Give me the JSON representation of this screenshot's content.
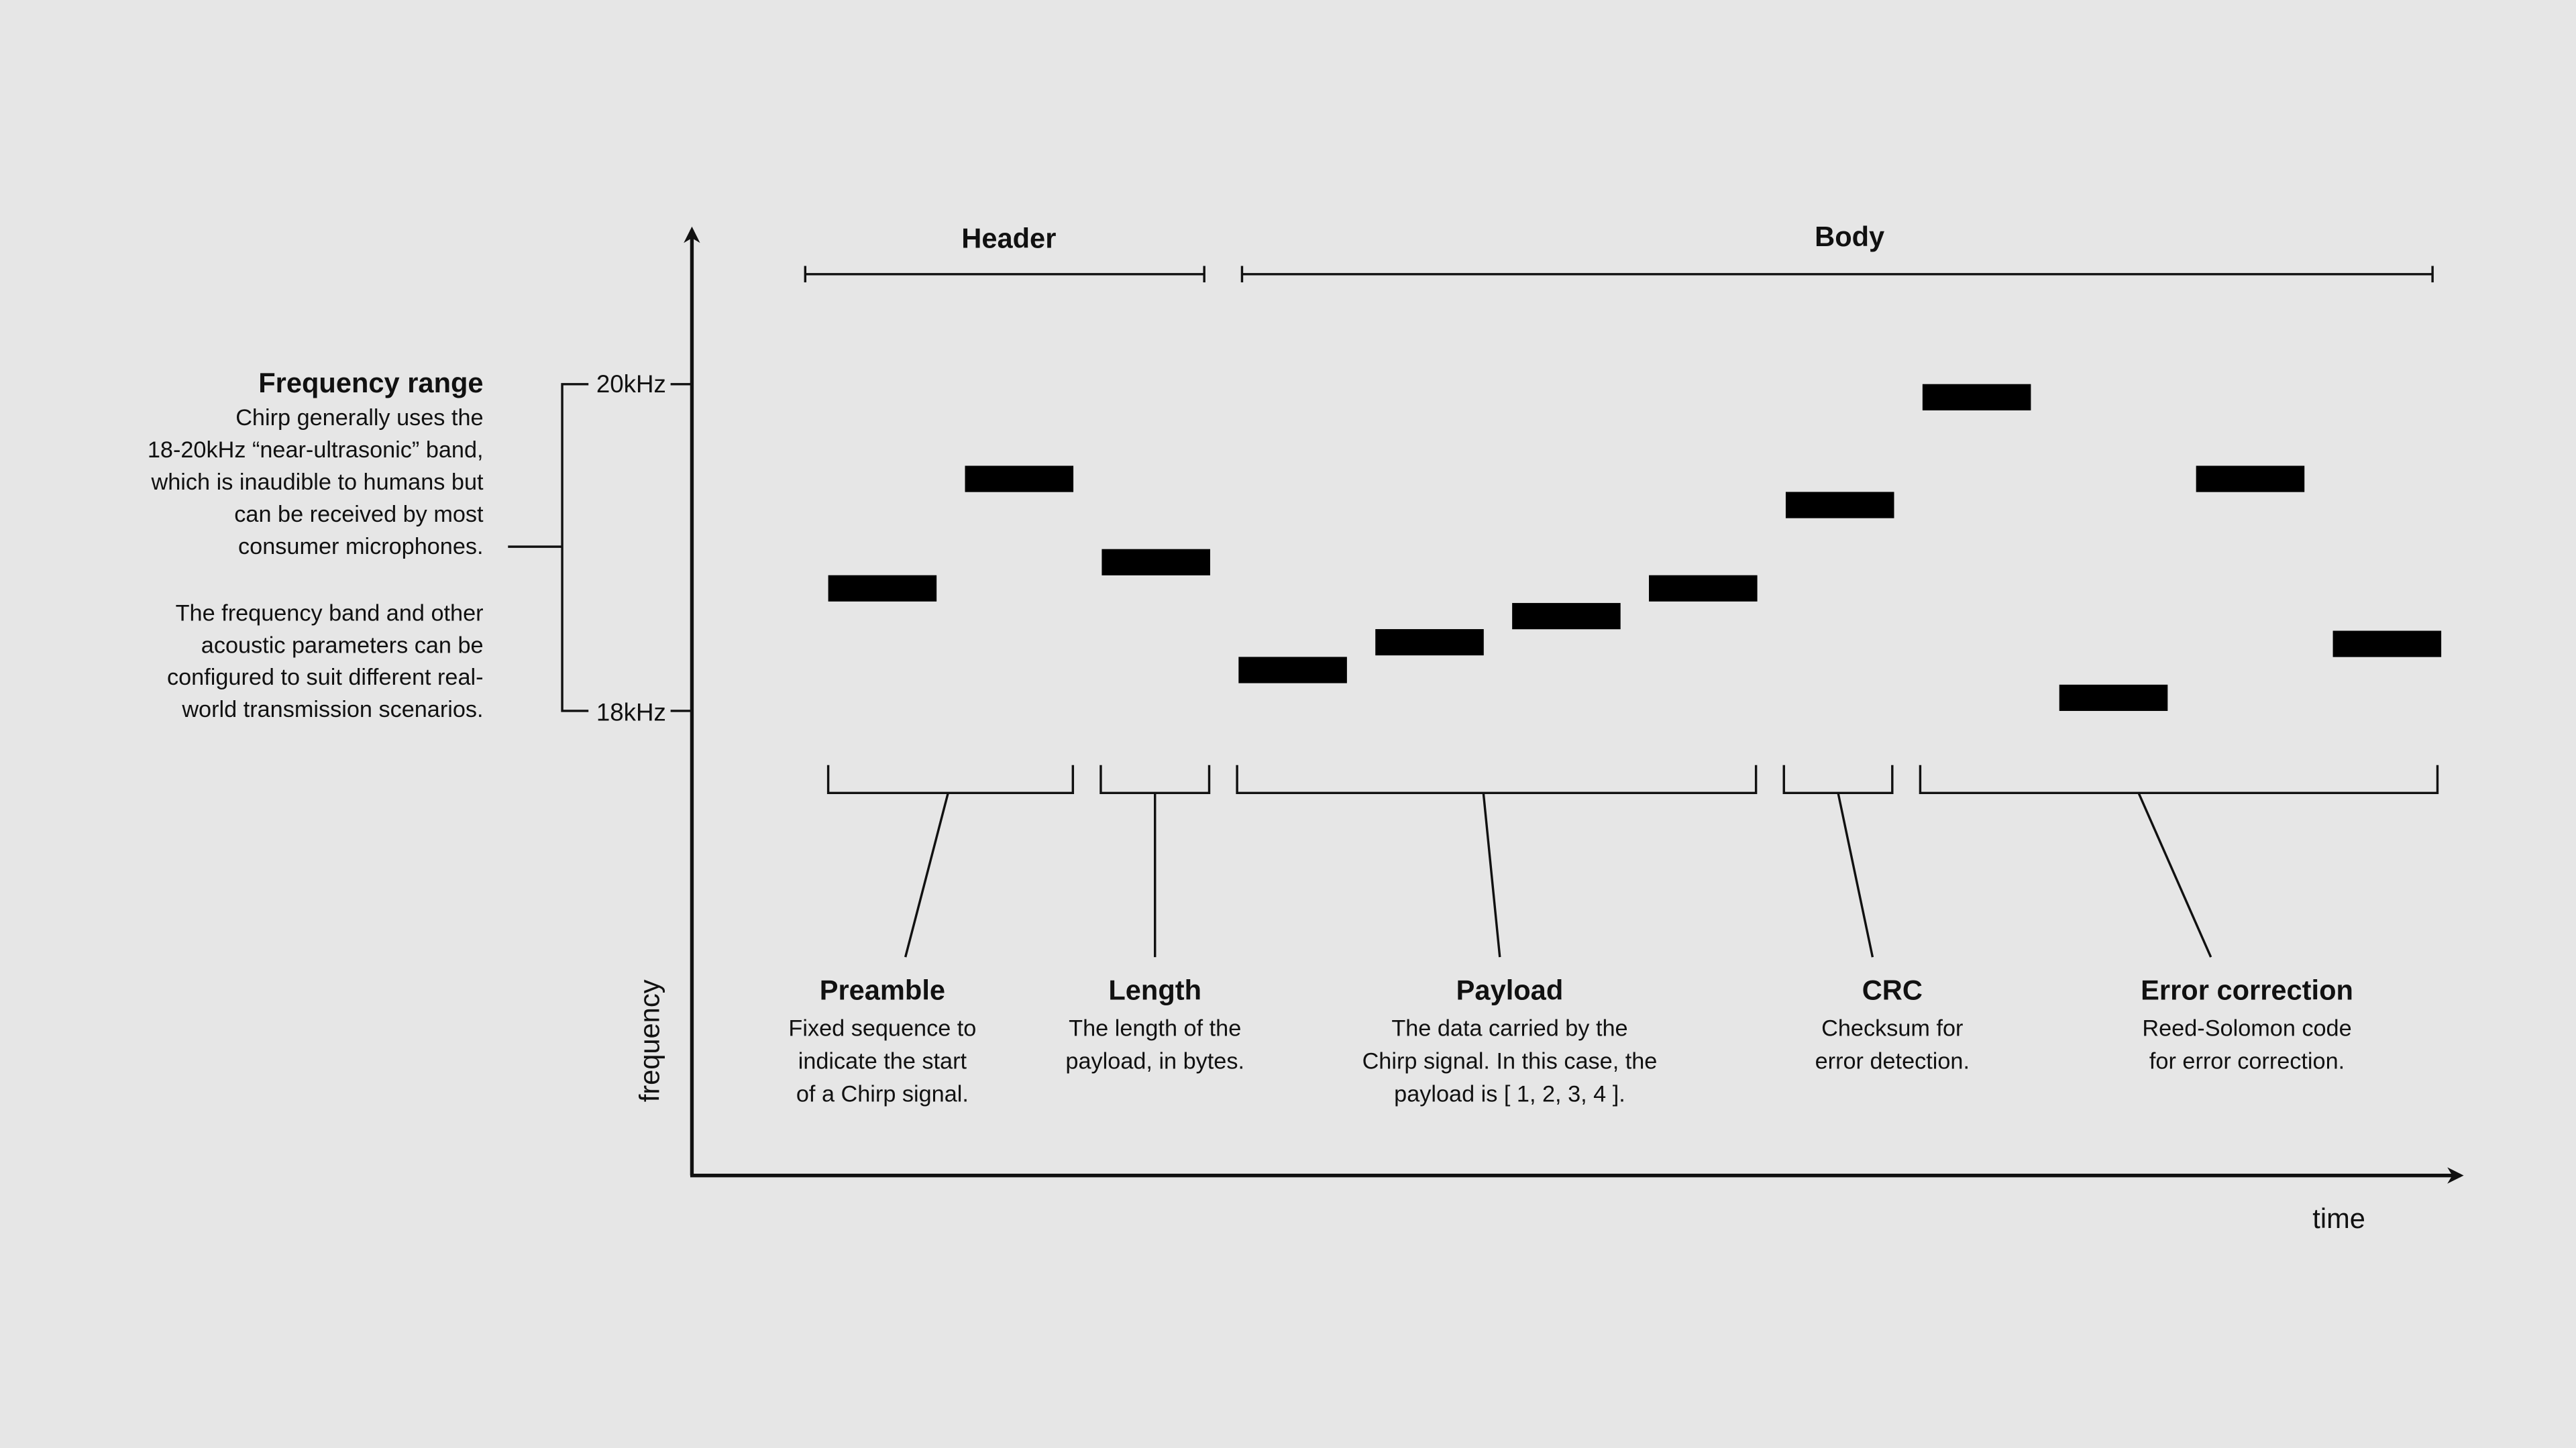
{
  "header_label": "Header",
  "body_label": "Body",
  "frequency_range": {
    "title": "Frequency range",
    "paragraph1": [
      "Chirp generally uses the",
      "18-20kHz “near-ultrasonic” band,",
      "which is inaudible to humans but",
      "can be received by most",
      "consumer microphones."
    ],
    "paragraph2": [
      "The frequency band and other",
      "acoustic parameters can be",
      "configured to suit different real-",
      "world transmission scenarios."
    ]
  },
  "axes": {
    "x_label": "time",
    "y_label": "frequency",
    "top_tick": "20kHz",
    "bottom_tick": "18kHz"
  },
  "segments": [
    {
      "title": "Preamble",
      "lines": [
        "Fixed sequence to",
        "indicate the start",
        "of a Chirp signal."
      ],
      "tones": [
        18.75,
        19.42
      ]
    },
    {
      "title": "Length",
      "lines": [
        "The length of the",
        "payload, in bytes."
      ],
      "tones": [
        18.91
      ]
    },
    {
      "title": "Payload",
      "lines": [
        "The data carried by the",
        "Chirp signal. In this case, the",
        "payload is [ 1, 2, 3, 4 ]."
      ],
      "tones": [
        18.25,
        18.42,
        18.58,
        18.75
      ]
    },
    {
      "title": "CRC",
      "lines": [
        "Checksum for",
        "error detection."
      ],
      "tones": [
        19.26
      ]
    },
    {
      "title": "Error correction",
      "lines": [
        "Reed-Solomon code",
        "for error correction."
      ],
      "tones": [
        19.92,
        18.08,
        19.42,
        18.41
      ]
    }
  ],
  "colors": {
    "background": "#e6e6e6",
    "ink": "#111111"
  }
}
